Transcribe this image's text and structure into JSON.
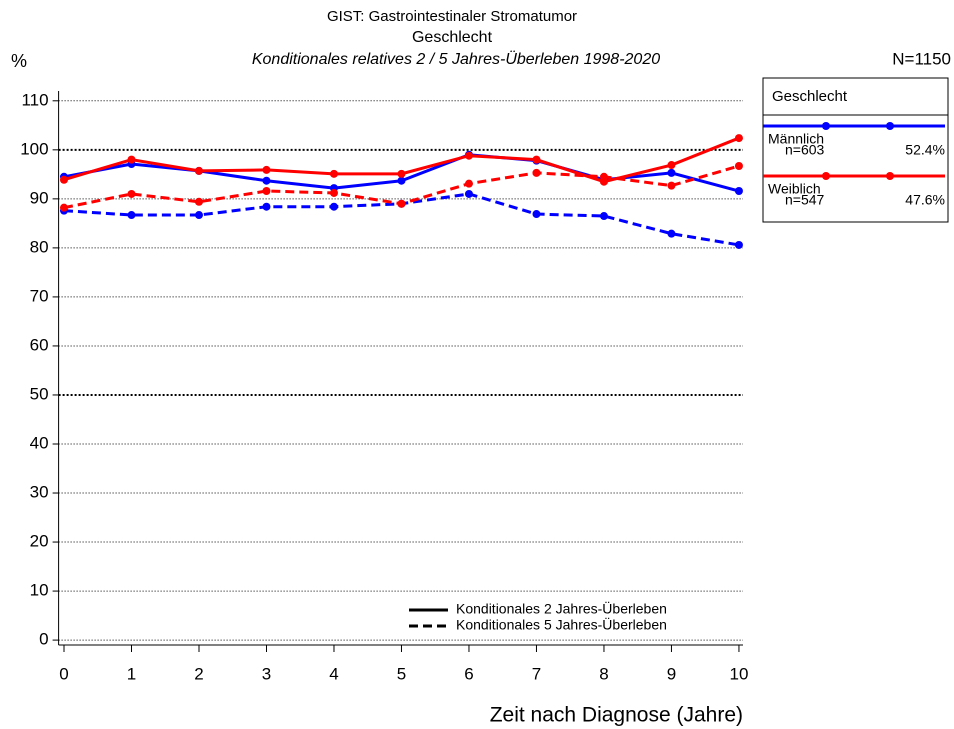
{
  "chart_data": {
    "type": "line",
    "title": "GIST: Gastrointestinaler Stromatumor",
    "subtitle": "Geschlecht",
    "subtitle2": "Konditionales relatives 2 / 5 Jahres-Überleben 1998-2020",
    "ylabel": "%",
    "xlabel": "Zeit nach Diagnose (Jahre)",
    "total": "N=1150",
    "legend_title": "Geschlecht",
    "x": [
      0,
      1,
      2,
      3,
      4,
      5,
      6,
      7,
      8,
      9,
      10
    ],
    "xlim": [
      -0.08,
      10.06
    ],
    "xticks": [
      0,
      1,
      2,
      3,
      4,
      5,
      6,
      7,
      8,
      9,
      10
    ],
    "ylim": [
      -1,
      112
    ],
    "yticks": [
      0,
      10,
      20,
      30,
      40,
      50,
      60,
      70,
      80,
      90,
      100,
      110
    ],
    "grid": true,
    "major_grid": [
      50,
      100
    ],
    "line_styles": [
      {
        "label": "Konditionales 2 Jahres-Überleben",
        "dash": "solid"
      },
      {
        "label": "Konditionales 5 Jahres-Überleben",
        "dash": "dashed"
      }
    ],
    "series": [
      {
        "name": "Männlich",
        "color": "#0000ff",
        "n": "n=603",
        "share": {
          "value": 52.4,
          "label": "52.4%"
        },
        "lines": [
          {
            "dash": "solid",
            "values": [
              94.5,
              97.1,
              95.7,
              93.7,
              92.2,
              93.7,
              99.0,
              97.8,
              93.9,
              95.3,
              91.6
            ]
          },
          {
            "dash": "dashed",
            "values": [
              87.6,
              86.7,
              86.7,
              88.4,
              88.4,
              89.0,
              91.0,
              86.9,
              86.5,
              82.9,
              80.6
            ]
          }
        ]
      },
      {
        "name": "Weiblich",
        "color": "#ff0000",
        "n": "n=547",
        "share": {
          "value": 47.6,
          "label": "47.6%"
        },
        "lines": [
          {
            "dash": "solid",
            "values": [
              93.9,
              98.0,
              95.7,
              95.9,
              95.1,
              95.1,
              98.8,
              98.0,
              93.5,
              96.9,
              102.4
            ]
          },
          {
            "dash": "dashed",
            "values": [
              88.2,
              91.0,
              89.4,
              91.6,
              91.2,
              89.0,
              93.1,
              95.3,
              94.5,
              92.7,
              96.7
            ]
          }
        ]
      }
    ]
  }
}
